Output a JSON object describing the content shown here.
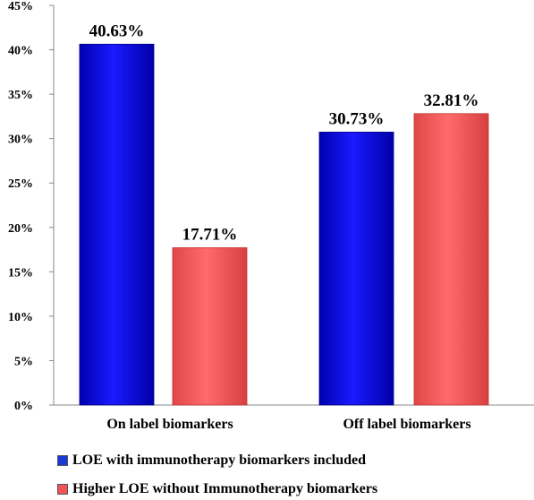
{
  "chart_data": {
    "type": "bar",
    "categories": [
      "On label biomarkers",
      "Off label biomarkers"
    ],
    "series": [
      {
        "name": "LOE with immunotherapy biomarkers included",
        "values": [
          40.63,
          30.73
        ],
        "labels": [
          "40.63%",
          "30.73%"
        ],
        "color": "#1010e0"
      },
      {
        "name": "Higher LOE without Immunotherapy biomarkers",
        "values": [
          17.71,
          32.81
        ],
        "labels": [
          "17.71%",
          "32.81%"
        ],
        "color": "#f05555"
      }
    ],
    "yticks": [
      "0%",
      "5%",
      "10%",
      "15%",
      "20%",
      "25%",
      "30%",
      "35%",
      "40%",
      "45%"
    ],
    "ylim": [
      0,
      45
    ],
    "title": "",
    "xlabel": "",
    "ylabel": "",
    "grid": false,
    "legend_position": "bottom"
  }
}
